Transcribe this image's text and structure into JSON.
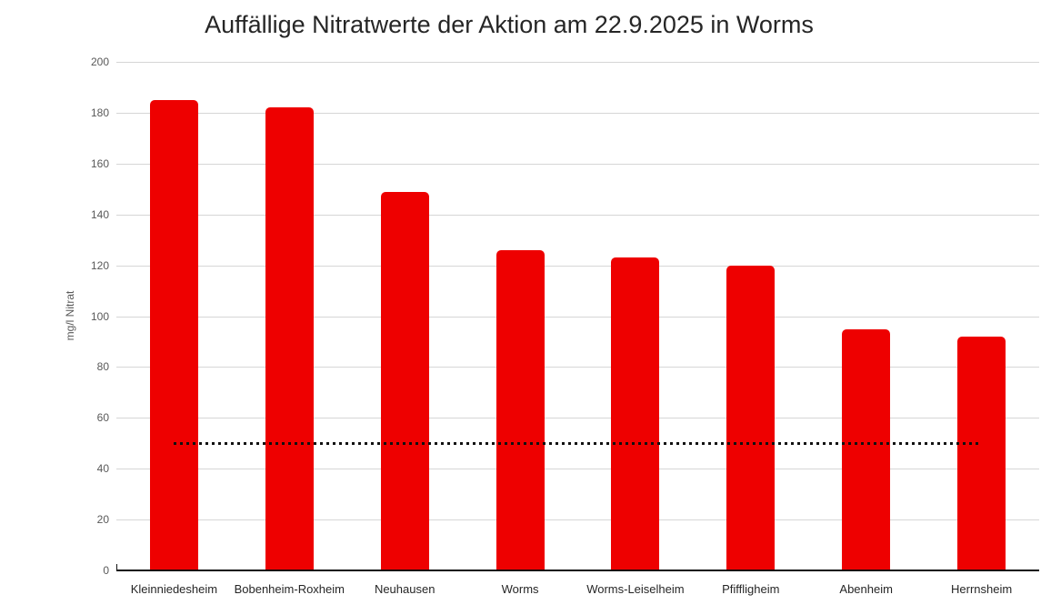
{
  "chart_data": {
    "type": "bar",
    "title": "Auffällige Nitratwerte der Aktion am 22.9.2025 in Worms",
    "categories": [
      "Kleinniedesheim",
      "Bobenheim-Roxheim",
      "Neuhausen",
      "Worms",
      "Worms-Leiselheim",
      "Pfiffligheim",
      "Abenheim",
      "Herrnsheim"
    ],
    "values": [
      185,
      182,
      149,
      126,
      123,
      120,
      95,
      92
    ],
    "xlabel": "",
    "ylabel": "mg/l Nitrat",
    "ylim": [
      0,
      200
    ],
    "yticks": [
      0,
      20,
      40,
      60,
      80,
      100,
      120,
      140,
      160,
      180,
      200
    ],
    "grid": true,
    "legend": "none",
    "threshold_line": {
      "value": 50,
      "style": "dotted",
      "note": "spans from first bar center to last bar center"
    }
  },
  "colors": {
    "bar": "#ee0000",
    "title_text": "#262626",
    "y_tick_text": "#595959",
    "category_text": "#262626",
    "gridline": "#d6d6d6",
    "axis_line": "#111111",
    "threshold_line": "#111111",
    "background": "#ffffff"
  }
}
